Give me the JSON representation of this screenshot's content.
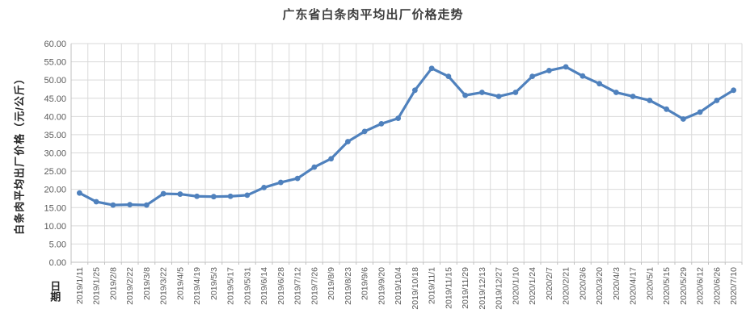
{
  "chart": {
    "title": "广东省白条肉平均出厂价格走势",
    "y_axis_title": "白条肉平均出厂价格（元/公斤）",
    "x_axis_title": "日期"
  },
  "chart_data": {
    "type": "line",
    "title": "广东省白条肉平均出厂价格走势",
    "xlabel": "日期",
    "ylabel": "白条肉平均出厂价格（元/公斤）",
    "categories": [
      "2019/1/11",
      "2019/1/25",
      "2019/2/8",
      "2019/2/22",
      "2019/3/8",
      "2019/3/22",
      "2019/4/5",
      "2019/4/19",
      "2019/5/3",
      "2019/5/17",
      "2019/5/31",
      "2019/6/14",
      "2019/6/28",
      "2019/7/12",
      "2019/7/26",
      "2019/8/9",
      "2019/8/23",
      "2019/9/6",
      "2019/9/20",
      "2019/10/4",
      "2019/10/18",
      "2019/11/1",
      "2019/11/15",
      "2019/11/29",
      "2019/12/13",
      "2019/12/27",
      "2020/1/10",
      "2020/1/24",
      "2020/2/7",
      "2020/2/21",
      "2020/3/6",
      "2020/3/20",
      "2020/4/3",
      "2020/4/17",
      "2020/5/1",
      "2020/5/15",
      "2020/5/29",
      "2020/6/12",
      "2020/6/26",
      "2020/7/10"
    ],
    "values": [
      19.0,
      16.6,
      15.7,
      15.8,
      15.7,
      18.8,
      18.7,
      18.1,
      18.0,
      18.1,
      18.4,
      20.5,
      21.9,
      23.0,
      26.1,
      28.4,
      33.1,
      35.9,
      38.0,
      39.5,
      47.2,
      53.2,
      51.0,
      45.8,
      46.6,
      45.5,
      46.6,
      51.0,
      52.6,
      53.6,
      51.1,
      49.0,
      46.6,
      45.5,
      44.4,
      42.0,
      39.3,
      41.2,
      44.4,
      47.2
    ],
    "ylim": [
      0,
      60
    ],
    "ytick_step": 5,
    "ytick_labels": [
      "0.00",
      "5.00",
      "10.00",
      "15.00",
      "20.00",
      "25.00",
      "30.00",
      "35.00",
      "40.00",
      "45.00",
      "50.00",
      "55.00",
      "60.00"
    ],
    "grid": true,
    "legend": "none",
    "x_labels_rotation": -90,
    "marker": "circle",
    "colors": {
      "line": "#4F81BD",
      "grid": "#D9D9D9",
      "axis": "#BFBFBF",
      "tick_text": "#595959",
      "title_text": "#3F3F3F"
    }
  }
}
